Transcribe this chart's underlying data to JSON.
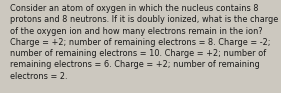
{
  "lines": [
    "Consider an atom of oxygen in which the nucleus contains 8",
    "protons and 8 neutrons. If it is doubly ionized, what is the charge",
    "of the oxygen ion and how many electrons remain in the ion?",
    "Charge = +2; number of remaining electrons = 8. Charge = -2;",
    "number of remaining electrons = 10. Charge = +2; number of",
    "remaining electrons = 6. Charge = +2; number of remaining",
    "electrons = 2."
  ],
  "font_size": 5.85,
  "font_family": "DejaVu Sans",
  "text_color": "#1a1a1a",
  "background_color": "#ccc8bf"
}
